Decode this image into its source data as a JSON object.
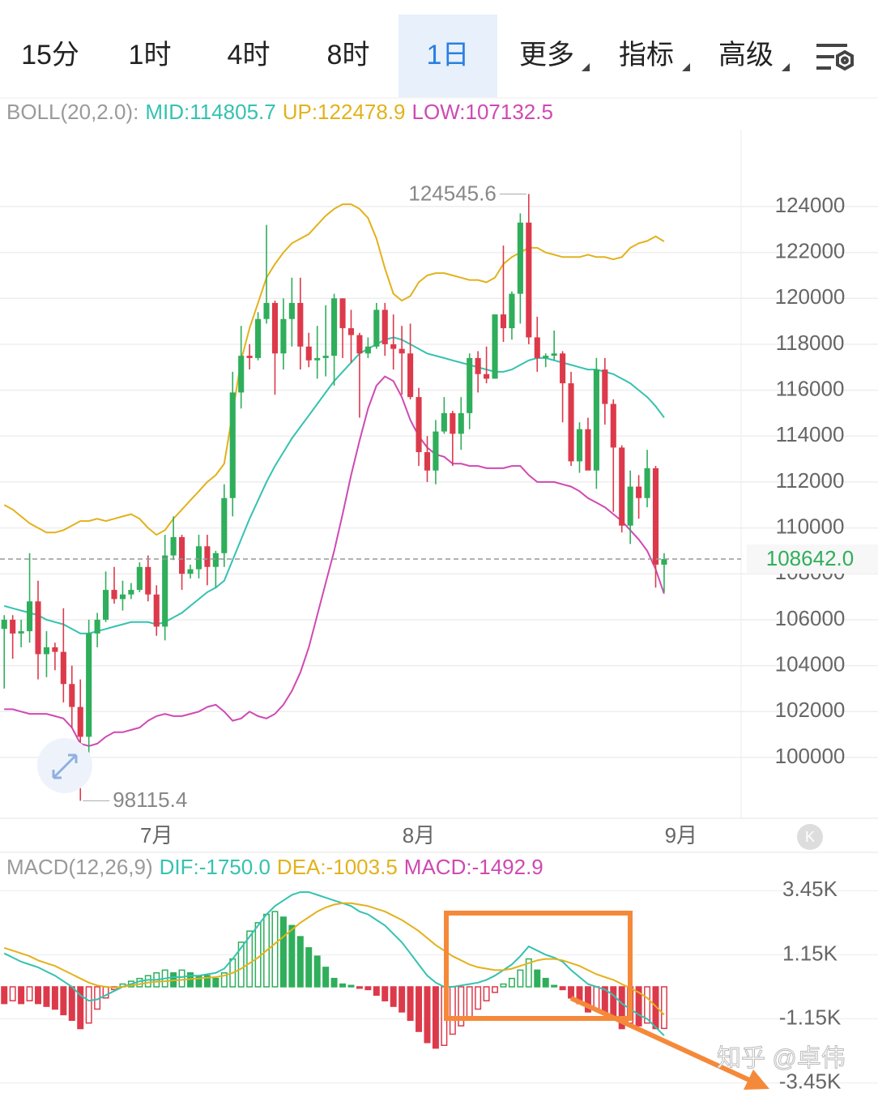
{
  "tabs": [
    "15分",
    "1时",
    "4时",
    "8时",
    "1日",
    "更多",
    "指标",
    "高级"
  ],
  "selected_tab": "1日",
  "watermark": "知乎 @卓伟",
  "chart_data": [
    {
      "type": "candlestick",
      "x": [
        0,
        1,
        2,
        3,
        4,
        5,
        6,
        7,
        8,
        9,
        10,
        11,
        12,
        13,
        14,
        15,
        16,
        17,
        18,
        19,
        20,
        21,
        22,
        23,
        24,
        25,
        26,
        27,
        28,
        29,
        30,
        31,
        32,
        33,
        34,
        35,
        36,
        37,
        38,
        39,
        40,
        41,
        42,
        43,
        44,
        45,
        46,
        47,
        48,
        49,
        50,
        51,
        52,
        53,
        54,
        55,
        56,
        57,
        58,
        59,
        60,
        61,
        62,
        63,
        64,
        65,
        66,
        67,
        68,
        69,
        70,
        71,
        72,
        73,
        74,
        75,
        76,
        77,
        78
      ],
      "xlim": [
        -0.5,
        87.1
      ],
      "xticks": [
        {
          "value": 18,
          "label": "7月"
        },
        {
          "value": 49,
          "label": "8月"
        },
        {
          "value": 80,
          "label": "9月"
        }
      ],
      "ylim": [
        97350,
        127350
      ],
      "yticks": [
        124000,
        122000,
        120000,
        118000,
        116000,
        114000,
        112000,
        110000,
        108000,
        106000,
        104000,
        102000,
        100000
      ],
      "grid": true,
      "up_color": "#2fae5b",
      "down_color": "#dc3a4b",
      "open": [
        105600,
        106000,
        105400,
        105500,
        106800,
        104500,
        104800,
        104600,
        103200,
        102200,
        100900,
        105400,
        106000,
        107300,
        106900,
        107100,
        107300,
        108300,
        107100,
        105700,
        108800,
        109600,
        108000,
        108200,
        109200,
        108300,
        108900,
        111300,
        115900,
        117500,
        117400,
        119100,
        119800,
        117600,
        119100,
        119800,
        117900,
        117300,
        117400,
        117500,
        120000,
        118700,
        118400,
        117600,
        117900,
        119500,
        118000,
        117800,
        117600,
        115700,
        113300,
        112500,
        114200,
        115000,
        114100,
        115000,
        117400,
        116700,
        116500,
        119300,
        118700,
        120200,
        123300,
        118300,
        117400,
        117500,
        117600,
        116300,
        112900,
        114300,
        112500,
        116900,
        115400,
        113500,
        110100,
        111800,
        111300,
        112600,
        108400
      ],
      "high": [
        106200,
        106200,
        106000,
        108900,
        107700,
        105500,
        105000,
        106500,
        104000,
        103400,
        106000,
        106300,
        108100,
        108300,
        107700,
        107600,
        108500,
        108800,
        107500,
        109700,
        110500,
        109700,
        108400,
        109700,
        109700,
        109000,
        111900,
        116800,
        118800,
        118000,
        119400,
        123200,
        119900,
        120000,
        120900,
        120900,
        118500,
        118800,
        119700,
        120200,
        120000,
        119500,
        118500,
        118300,
        119800,
        119800,
        119300,
        118800,
        118900,
        116100,
        114000,
        114700,
        115700,
        115100,
        115700,
        117600,
        117700,
        117900,
        119300,
        122300,
        120300,
        123700,
        124545.6,
        119200,
        117600,
        118600,
        117700,
        116800,
        114600,
        114800,
        117400,
        117400,
        115600,
        113600,
        112500,
        112300,
        113400,
        112700,
        108900
      ],
      "low": [
        103000,
        104300,
        104800,
        105000,
        103400,
        103500,
        103800,
        102400,
        101300,
        98115.4,
        99600,
        104800,
        105900,
        106700,
        106400,
        106900,
        107200,
        106800,
        105300,
        105100,
        108600,
        107300,
        107800,
        107800,
        107500,
        107400,
        108300,
        110500,
        115200,
        116900,
        117300,
        118900,
        115800,
        116900,
        117900,
        116900,
        117000,
        116500,
        116600,
        116200,
        117400,
        117200,
        114800,
        117400,
        117800,
        117500,
        116900,
        115800,
        115600,
        112700,
        112000,
        111900,
        114100,
        112700,
        113400,
        114300,
        115900,
        116300,
        116500,
        118100,
        118200,
        118900,
        118000,
        116800,
        117000,
        117300,
        114600,
        112700,
        112400,
        112600,
        111700,
        114500,
        110700,
        109800,
        109300,
        110400,
        110900,
        107400,
        107200
      ],
      "close": [
        106000,
        105400,
        105500,
        106800,
        104500,
        104800,
        104600,
        103200,
        102200,
        100900,
        105400,
        106000,
        107300,
        106900,
        107100,
        107300,
        108300,
        107100,
        105700,
        108800,
        109600,
        108000,
        108200,
        109200,
        108300,
        108900,
        111300,
        115900,
        117500,
        117400,
        119100,
        119800,
        117600,
        119100,
        119800,
        117900,
        117300,
        117400,
        117500,
        120000,
        118700,
        118400,
        117600,
        117900,
        119500,
        118000,
        117800,
        117600,
        115700,
        113300,
        112500,
        114200,
        115000,
        114100,
        115000,
        117400,
        116700,
        116500,
        119300,
        118700,
        120200,
        123300,
        118300,
        117400,
        117500,
        117600,
        116300,
        112900,
        114300,
        112500,
        116900,
        115400,
        113500,
        110100,
        111800,
        111300,
        112600,
        108400,
        108642.0
      ],
      "last_price": {
        "value": 108642.0,
        "label": "108642.0"
      },
      "boll": {
        "title": "BOLL(20,2.0):",
        "title_color": "#9a9a9a",
        "series": [
          {
            "name": "MID:114805.7",
            "color": "#35c2b0",
            "values": [
              106600,
              106500,
              106400,
              106300,
              106200,
              106000,
              105900,
              105800,
              105600,
              105400,
              105400,
              105500,
              105600,
              105700,
              105800,
              105900,
              105900,
              105900,
              105800,
              105900,
              106100,
              106300,
              106600,
              106900,
              107200,
              107400,
              107700,
              108600,
              109500,
              110400,
              111200,
              112000,
              112700,
              113300,
              113900,
              114400,
              114900,
              115400,
              115900,
              116400,
              116800,
              117200,
              117600,
              117800,
              118000,
              118200,
              118300,
              118200,
              118000,
              117800,
              117600,
              117500,
              117400,
              117300,
              117200,
              117100,
              117000,
              116900,
              116800,
              116800,
              116900,
              117100,
              117300,
              117400,
              117400,
              117300,
              117200,
              117100,
              117000,
              116900,
              116900,
              116800,
              116700,
              116500,
              116300,
              116000,
              115700,
              115300,
              114805.7
            ]
          },
          {
            "name": "UP:122478.9",
            "color": "#e2b21c",
            "values": [
              111000,
              110800,
              110500,
              110200,
              110000,
              109800,
              109800,
              109900,
              110100,
              110300,
              110300,
              110400,
              110300,
              110400,
              110500,
              110600,
              110400,
              110000,
              109700,
              109900,
              110400,
              110800,
              111200,
              111600,
              112000,
              112300,
              112800,
              115000,
              117300,
              118700,
              119800,
              120900,
              121500,
              122000,
              122400,
              122600,
              122800,
              123200,
              123600,
              123900,
              124100,
              124100,
              123900,
              123500,
              122600,
              121300,
              120200,
              119900,
              120100,
              120700,
              121000,
              121100,
              121100,
              121000,
              120900,
              120800,
              120800,
              120700,
              120900,
              121500,
              121800,
              122000,
              122200,
              122200,
              122000,
              121900,
              121800,
              121800,
              121800,
              121900,
              121800,
              121800,
              121700,
              121800,
              122200,
              122400,
              122500,
              122700,
              122478.9
            ]
          },
          {
            "name": "LOW:107132.5",
            "color": "#cf49b3",
            "values": [
              102100,
              102100,
              102000,
              101900,
              101900,
              101900,
              101800,
              101700,
              101300,
              100600,
              100500,
              100600,
              100900,
              101100,
              101100,
              101200,
              101300,
              101600,
              101800,
              101900,
              101800,
              101800,
              101900,
              102000,
              102200,
              102300,
              102000,
              101600,
              101700,
              102000,
              101800,
              101700,
              101900,
              102300,
              102900,
              103700,
              104800,
              106200,
              107600,
              109000,
              110600,
              112300,
              113800,
              115200,
              116200,
              116600,
              116400,
              115700,
              114700,
              114000,
              113500,
              113200,
              113100,
              112800,
              112800,
              112700,
              112700,
              112600,
              112600,
              112600,
              112700,
              112700,
              112300,
              112000,
              112000,
              112000,
              111900,
              111800,
              111600,
              111300,
              111100,
              110900,
              110600,
              110300,
              109900,
              109500,
              109000,
              108200,
              107132.5
            ]
          }
        ]
      }
    },
    {
      "type": "macd",
      "title": "MACD(12,26,9)",
      "title_color": "#9a9a9a",
      "x": [
        0,
        1,
        2,
        3,
        4,
        5,
        6,
        7,
        8,
        9,
        10,
        11,
        12,
        13,
        14,
        15,
        16,
        17,
        18,
        19,
        20,
        21,
        22,
        23,
        24,
        25,
        26,
        27,
        28,
        29,
        30,
        31,
        32,
        33,
        34,
        35,
        36,
        37,
        38,
        39,
        40,
        41,
        42,
        43,
        44,
        45,
        46,
        47,
        48,
        49,
        50,
        51,
        52,
        53,
        54,
        55,
        56,
        57,
        58,
        59,
        60,
        61,
        62,
        63,
        64,
        65,
        66,
        67,
        68,
        69,
        70,
        71,
        72,
        73,
        74,
        75,
        76,
        77,
        78
      ],
      "xlim": [
        -0.5,
        87.1
      ],
      "ylim": [
        -3780,
        3780
      ],
      "yticks": [
        {
          "value": 3450,
          "label": "3.45K"
        },
        {
          "value": 1150,
          "label": "1.15K"
        },
        {
          "value": -1150,
          "label": "-1.15K"
        },
        {
          "value": -3450,
          "label": "-3.45K"
        }
      ],
      "series": [
        {
          "name": "DIF:-1750.0",
          "color": "#35c2b0",
          "values": [
            1200,
            1050,
            900,
            800,
            700,
            550,
            400,
            200,
            0,
            -300,
            -500,
            -450,
            -300,
            -150,
            0,
            100,
            200,
            250,
            250,
            300,
            350,
            350,
            400,
            400,
            450,
            500,
            650,
            1000,
            1400,
            1800,
            2200,
            2600,
            2900,
            3100,
            3300,
            3400,
            3400,
            3300,
            3200,
            3100,
            3000,
            2900,
            2700,
            2600,
            2400,
            2200,
            1900,
            1600,
            1200,
            800,
            400,
            150,
            0,
            0,
            50,
            100,
            150,
            250,
            400,
            600,
            800,
            1100,
            1450,
            1300,
            1150,
            1050,
            900,
            600,
            350,
            100,
            0,
            -100,
            -300,
            -600,
            -800,
            -1000,
            -1150,
            -1450,
            -1750.0
          ]
        },
        {
          "name": "DEA:-1003.5",
          "color": "#e2b21c",
          "values": [
            1400,
            1300,
            1200,
            1100,
            950,
            850,
            750,
            600,
            450,
            300,
            150,
            50,
            0,
            -30,
            0,
            50,
            100,
            150,
            180,
            200,
            230,
            250,
            280,
            300,
            330,
            350,
            400,
            500,
            650,
            850,
            1050,
            1300,
            1550,
            1800,
            2050,
            2300,
            2500,
            2700,
            2850,
            2950,
            3000,
            3000,
            2950,
            2900,
            2800,
            2700,
            2550,
            2400,
            2200,
            2000,
            1750,
            1500,
            1300,
            1100,
            950,
            800,
            700,
            650,
            600,
            600,
            650,
            750,
            850,
            950,
            1000,
            1000,
            950,
            850,
            750,
            600,
            450,
            350,
            250,
            100,
            -50,
            -200,
            -400,
            -700,
            -1003.5
          ]
        },
        {
          "name": "MACD:-1492.9",
          "color": "#cf49b3",
          "up_color": "#2fae5b",
          "down_color": "#dc3a4b",
          "values": [
            -600,
            -500,
            -600,
            -500,
            -600,
            -700,
            -800,
            -1000,
            -1200,
            -1500,
            -1300,
            -800,
            -400,
            -100,
            100,
            200,
            300,
            400,
            500,
            600,
            500,
            600,
            500,
            400,
            400,
            300,
            500,
            1000,
            1600,
            2000,
            2300,
            2600,
            2700,
            2500,
            2200,
            1800,
            1400,
            1100,
            700,
            300,
            100,
            50,
            -50,
            -100,
            -300,
            -500,
            -700,
            -900,
            -1200,
            -1600,
            -2000,
            -2200,
            -2100,
            -1700,
            -1400,
            -1100,
            -800,
            -500,
            -200,
            100,
            300,
            600,
            1000,
            600,
            300,
            50,
            -100,
            -400,
            -600,
            -900,
            -800,
            -900,
            -1200,
            -1500,
            -1300,
            -1400,
            -1300,
            -1500,
            -1492.9
          ]
        }
      ]
    }
  ]
}
